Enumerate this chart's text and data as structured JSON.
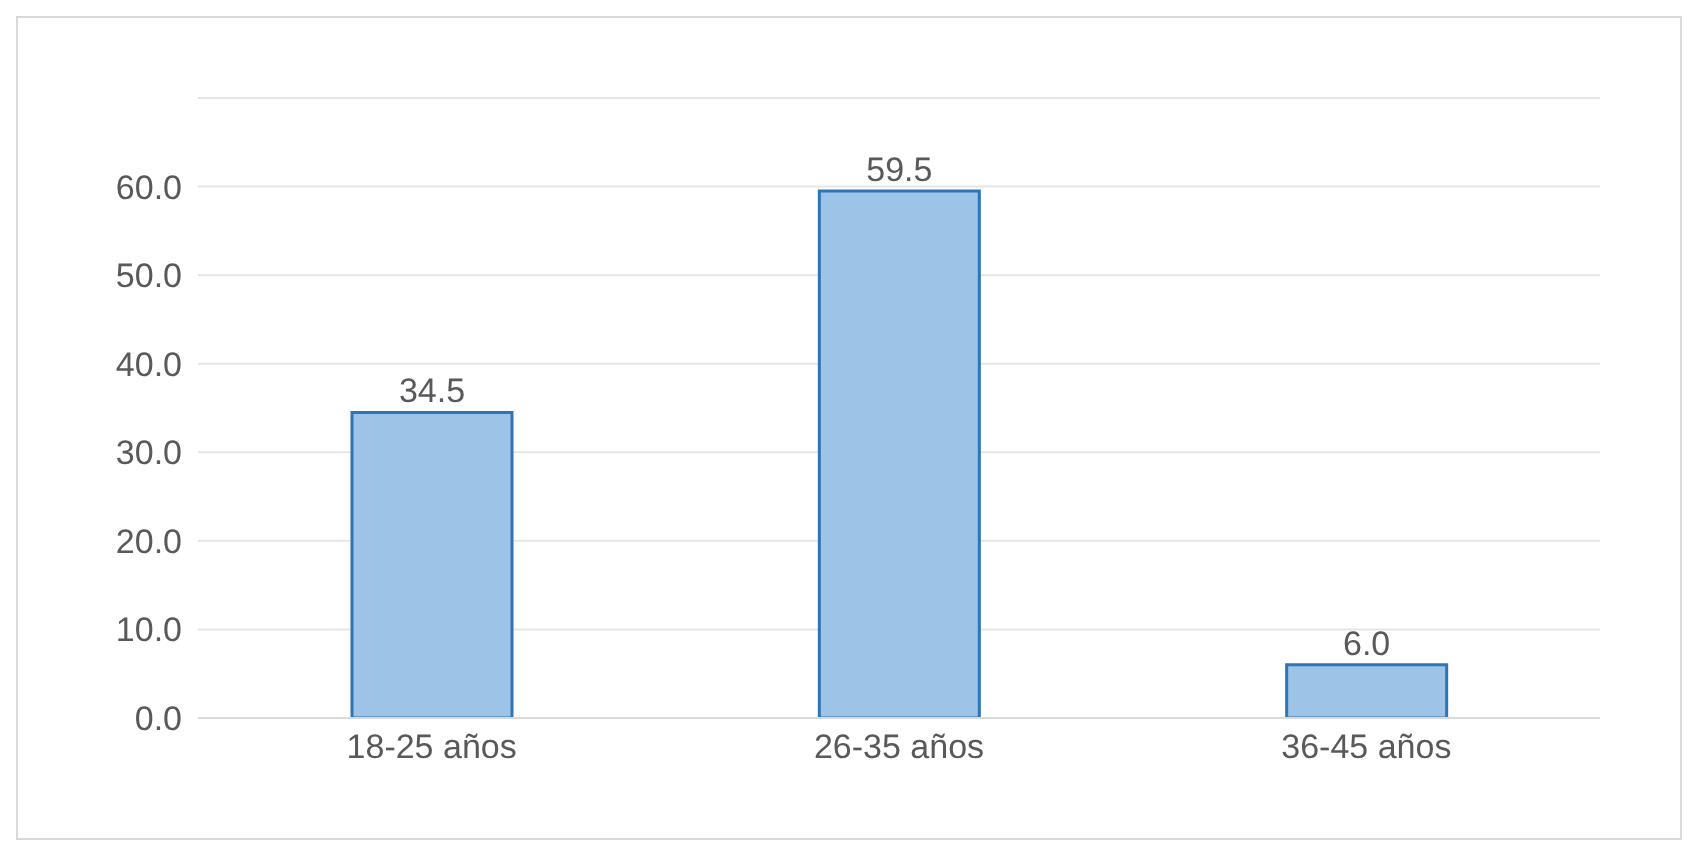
{
  "chart_data": {
    "type": "bar",
    "categories": [
      "18-25 años",
      "26-35 años",
      "36-45 años"
    ],
    "values": [
      34.5,
      59.5,
      6.0
    ],
    "value_labels": [
      "34.5",
      "59.5",
      "6.0"
    ],
    "color": "#9dc3e6",
    "ylim": [
      0,
      70
    ],
    "yticks": [
      {
        "value": 0,
        "label": "0.0"
      },
      {
        "value": 10,
        "label": "10.0"
      },
      {
        "value": 20,
        "label": "20.0"
      },
      {
        "value": 30,
        "label": "30.0"
      },
      {
        "value": 40,
        "label": "40.0"
      },
      {
        "value": 50,
        "label": "50.0"
      },
      {
        "value": 60,
        "label": "60.0"
      },
      {
        "value": 70,
        "label": null
      }
    ],
    "grid": "y",
    "legend": false
  }
}
